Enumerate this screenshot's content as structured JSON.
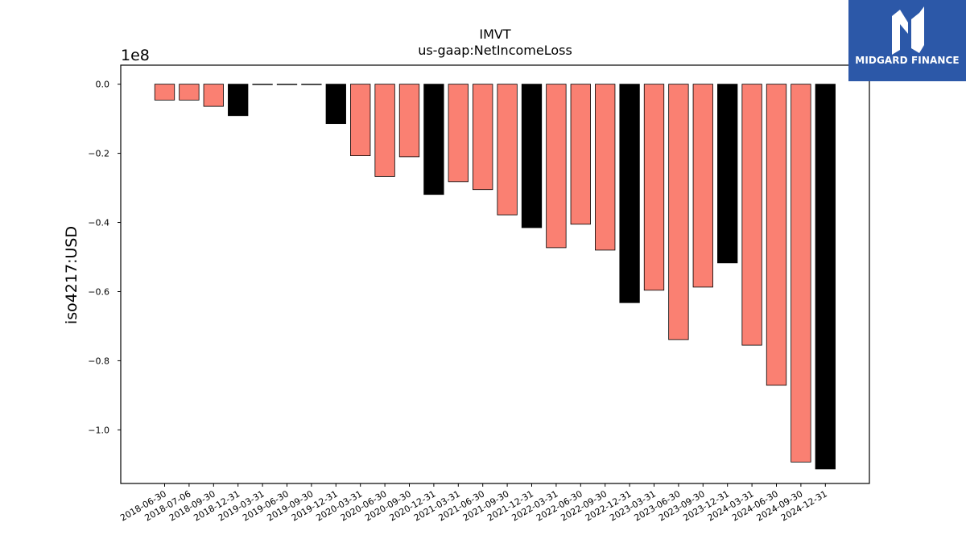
{
  "brand": {
    "name": "MIDGARD FINANCE",
    "logo_icon": "midgard-logo-icon",
    "background_color": "#2c58a8"
  },
  "chart_data": {
    "type": "bar",
    "title": "IMVT",
    "subtitle": "us-gaap:NetIncomeLoss",
    "xlabel": "",
    "ylabel": "iso4217:USD",
    "y_offset_label": "1e8",
    "ylim": [
      -115500000,
      5500000
    ],
    "yticks": [
      {
        "value": 0,
        "label": "0.0"
      },
      {
        "value": -20000000,
        "label": "−0.2"
      },
      {
        "value": -40000000,
        "label": "−0.4"
      },
      {
        "value": -60000000,
        "label": "−0.6"
      },
      {
        "value": -80000000,
        "label": "−0.8"
      },
      {
        "value": -100000000,
        "label": "−1.0"
      }
    ],
    "grid": false,
    "colors": {
      "quarter": "#fa8072",
      "annual": "#000000"
    },
    "categories": [
      "2018-06-30",
      "2018-07-06",
      "2018-09-30",
      "2018-12-31",
      "2019-03-31",
      "2019-06-30",
      "2019-09-30",
      "2019-12-31",
      "2020-03-31",
      "2020-06-30",
      "2020-09-30",
      "2020-12-31",
      "2021-03-31",
      "2021-06-30",
      "2021-09-30",
      "2021-12-31",
      "2022-03-31",
      "2022-06-30",
      "2022-09-30",
      "2022-12-31",
      "2023-03-31",
      "2023-06-30",
      "2023-09-30",
      "2023-12-31",
      "2024-03-31",
      "2024-06-30",
      "2024-09-30",
      "2024-12-31"
    ],
    "values": [
      -4600000,
      -4600000,
      -6400000,
      -9100000,
      -100000,
      -100000,
      -100000,
      -11400000,
      -20700000,
      -26700000,
      -21000000,
      -31900000,
      -28200000,
      -30500000,
      -37800000,
      -41500000,
      -47300000,
      -40500000,
      -48000000,
      -63200000,
      -59600000,
      -73900000,
      -58700000,
      -51700000,
      -75500000,
      -87100000,
      -109300000,
      -111300000
    ],
    "kinds": [
      "quarter",
      "quarter",
      "quarter",
      "annual",
      "annual",
      "annual",
      "annual",
      "annual",
      "quarter",
      "quarter",
      "quarter",
      "annual",
      "quarter",
      "quarter",
      "quarter",
      "annual",
      "quarter",
      "quarter",
      "quarter",
      "annual",
      "quarter",
      "quarter",
      "quarter",
      "annual",
      "quarter",
      "quarter",
      "quarter",
      "annual"
    ]
  }
}
